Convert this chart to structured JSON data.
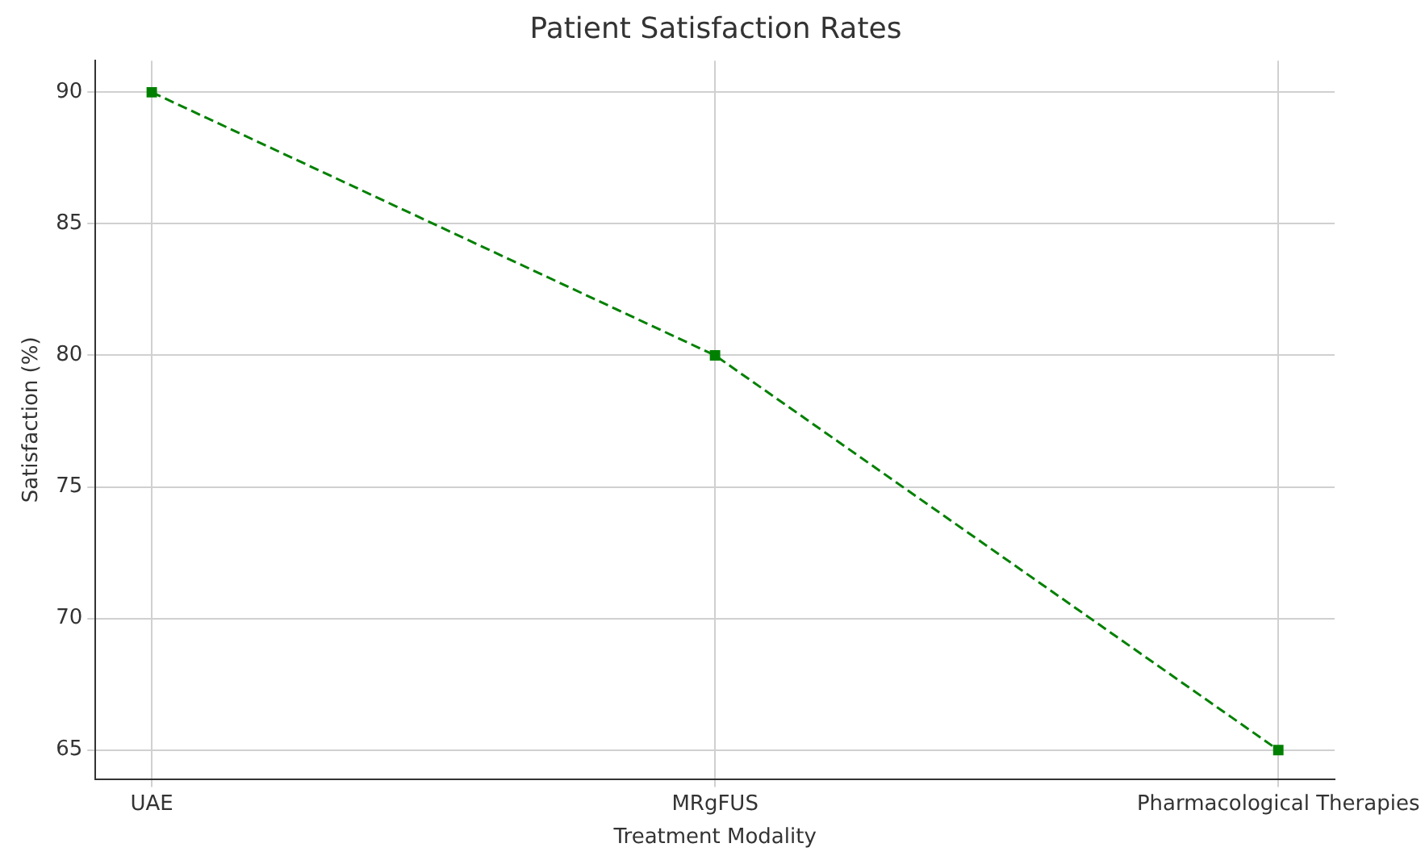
{
  "chart_data": {
    "type": "line",
    "title": "Patient Satisfaction Rates",
    "xlabel": "Treatment Modality",
    "ylabel": "Satisfaction (%)",
    "categories": [
      "UAE",
      "MRgFUS",
      "Pharmacological Therapies"
    ],
    "series": [
      {
        "color": "#008000",
        "values": [
          90,
          80,
          65
        ]
      }
    ],
    "ylim": [
      63.9,
      91.2
    ],
    "yticks": [
      65,
      70,
      75,
      80,
      85,
      90
    ],
    "grid": true,
    "legend": false,
    "marker": "square",
    "line_style": "dashed"
  }
}
